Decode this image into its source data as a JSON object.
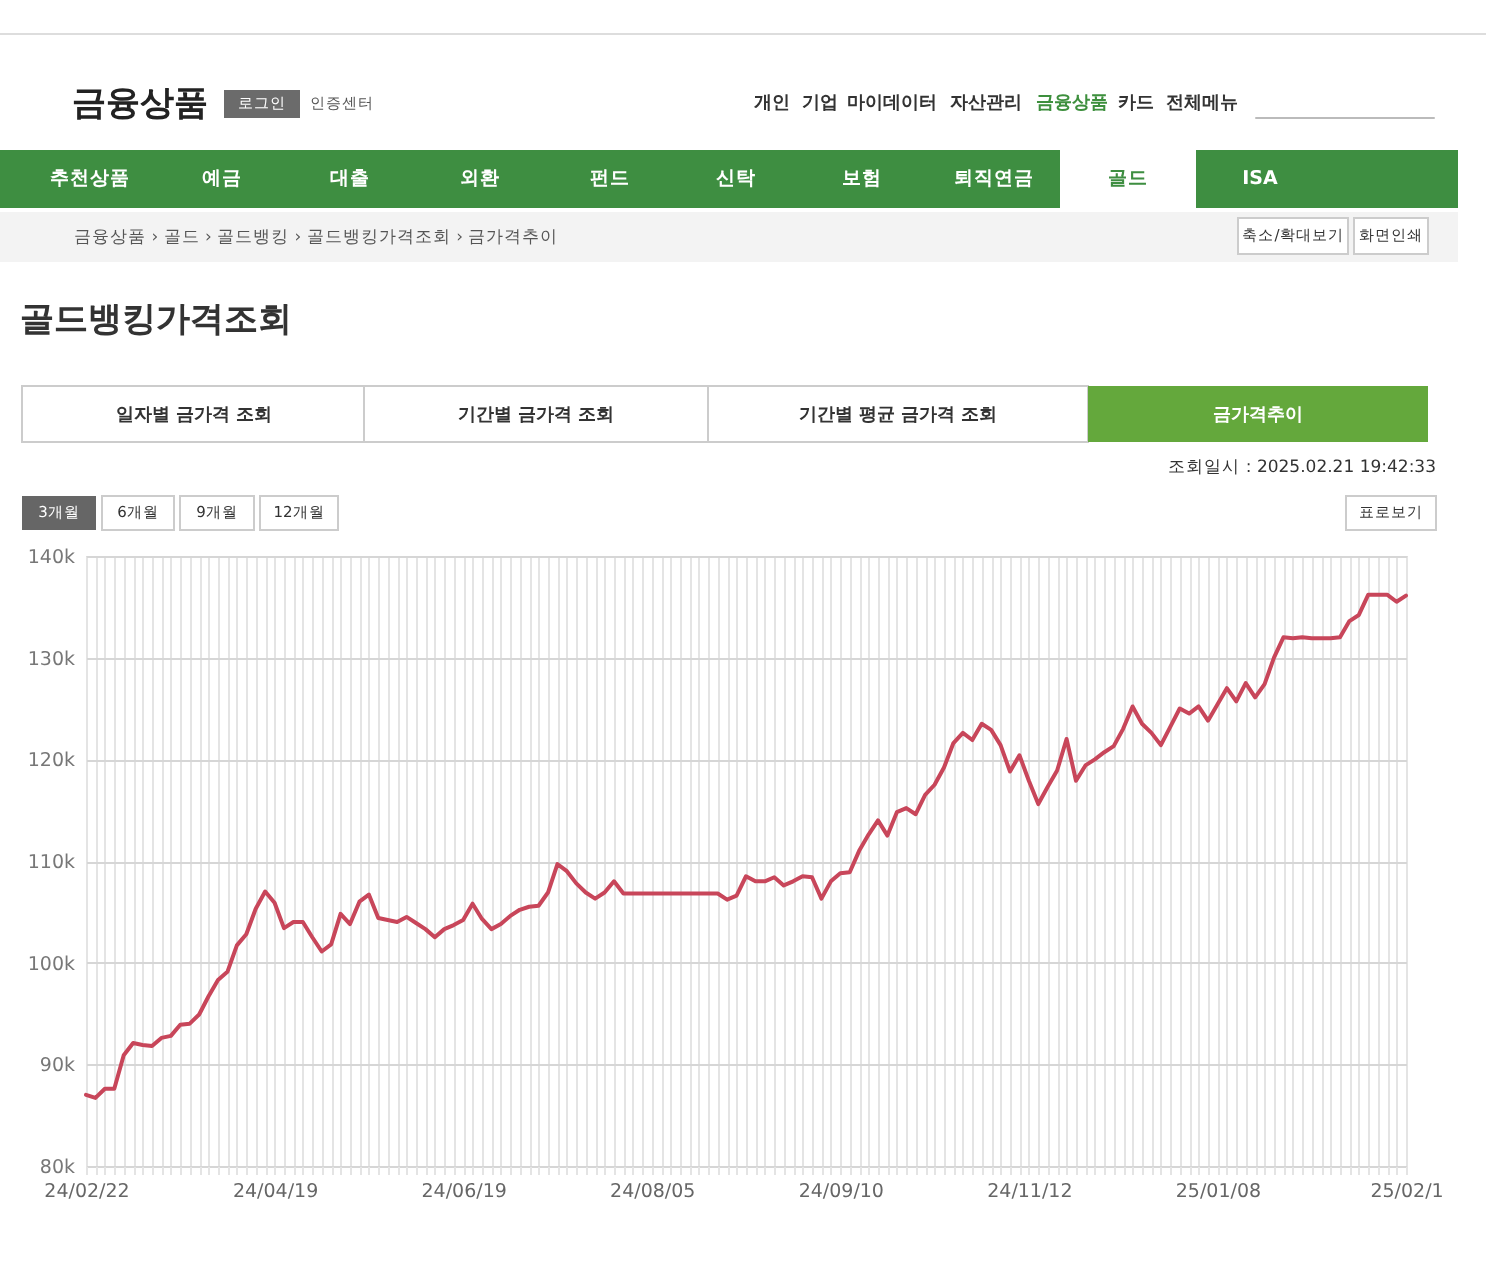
{
  "chart_data": {
    "type": "line",
    "title": "골드뱅킹가격조회",
    "categories": [
      "24/02/22",
      null,
      null,
      null,
      null,
      null,
      null,
      null,
      null,
      null,
      null,
      null,
      null,
      null,
      null,
      null,
      null,
      null,
      null,
      null,
      "24/04/19",
      null,
      null,
      null,
      null,
      null,
      null,
      null,
      null,
      null,
      null,
      null,
      null,
      null,
      null,
      null,
      null,
      null,
      null,
      null,
      "24/06/19",
      null,
      null,
      null,
      null,
      null,
      null,
      null,
      null,
      null,
      null,
      null,
      null,
      null,
      null,
      null,
      null,
      null,
      null,
      null,
      "24/08/05",
      null,
      null,
      null,
      null,
      null,
      null,
      null,
      null,
      null,
      null,
      null,
      null,
      null,
      null,
      null,
      null,
      null,
      null,
      null,
      "24/09/10",
      null,
      null,
      null,
      null,
      null,
      null,
      null,
      null,
      null,
      null,
      null,
      null,
      null,
      null,
      null,
      null,
      null,
      null,
      null,
      "24/11/12",
      null,
      null,
      null,
      null,
      null,
      null,
      null,
      null,
      null,
      null,
      null,
      null,
      null,
      null,
      null,
      null,
      null,
      null,
      null,
      "25/01/08",
      null,
      null,
      null,
      null,
      null,
      null,
      null,
      null,
      null,
      null,
      null,
      null,
      null,
      null,
      null,
      null,
      null,
      null,
      null,
      "25/02/1"
    ],
    "series": [
      {
        "color": "#c8465a",
        "values": [
          87000,
          86700,
          87600,
          87600,
          90900,
          92100,
          91900,
          91800,
          92600,
          92800,
          93900,
          94000,
          94900,
          96700,
          98300,
          99100,
          101700,
          102800,
          105300,
          107000,
          105900,
          103400,
          104000,
          104000,
          102500,
          101100,
          101800,
          104800,
          103800,
          106000,
          106700,
          104400,
          104200,
          104000,
          104500,
          103900,
          103300,
          102500,
          103300,
          103700,
          104200,
          105800,
          104300,
          103300,
          103800,
          104600,
          105200,
          105500,
          105600,
          106900,
          109700,
          109000,
          107800,
          106900,
          106300,
          106900,
          108000,
          106800,
          106800,
          106800,
          106800,
          106800,
          106800,
          106800,
          106800,
          106800,
          106800,
          106800,
          106200,
          106600,
          108500,
          108000,
          108000,
          108400,
          107600,
          108000,
          108500,
          108400,
          106300,
          108000,
          108800,
          108900,
          111000,
          112600,
          114000,
          112500,
          114800,
          115200,
          114600,
          116500,
          117500,
          119200,
          121600,
          122600,
          121900,
          123500,
          122900,
          121400,
          118800,
          120400,
          117900,
          115600,
          117300,
          118900,
          122000,
          117900,
          119400,
          120000,
          120700,
          121300,
          123000,
          125200,
          123500,
          122600,
          121400,
          123200,
          125000,
          124500,
          125200,
          123800,
          125400,
          127000,
          125700,
          127500,
          126100,
          127400,
          130000,
          132000,
          131900,
          132000,
          131900,
          131900,
          131900,
          132000,
          133600,
          134200,
          136200,
          136200,
          136200,
          135500,
          136100
        ]
      }
    ],
    "ylim": [
      80000,
      140000
    ],
    "yticks": [
      {
        "value": 80000,
        "label": "80k"
      },
      {
        "value": 90000,
        "label": "90k"
      },
      {
        "value": 100000,
        "label": "100k"
      },
      {
        "value": 110000,
        "label": "110k"
      },
      {
        "value": 120000,
        "label": "120k"
      },
      {
        "value": 130000,
        "label": "130k"
      },
      {
        "value": 140000,
        "label": "140k"
      }
    ],
    "grid": true,
    "annotations": [
      "금융상품",
      "로그인",
      "인증센터",
      "개인",
      "기업",
      "마이데이터",
      "자산관리",
      "금융상품",
      "카드",
      "전체메뉴",
      "추천상품",
      "예금",
      "대출",
      "외환",
      "펀드",
      "신탁",
      "보험",
      "퇴직연금",
      "골드",
      "ISA",
      "금융상품 › 골드 › 골드뱅킹 › 골드뱅킹가격조회 › 금가격추이",
      "축소/확대보기",
      "화면인쇄",
      "일자별 금가격 조회",
      "기간별 금가격 조회",
      "기간별 평균 금가격 조회",
      "금가격추이",
      "조회일시 : 2025.02.21 19:42:33",
      "3개월",
      "6개월",
      "9개월",
      "12개월",
      "표로보기"
    ]
  }
}
